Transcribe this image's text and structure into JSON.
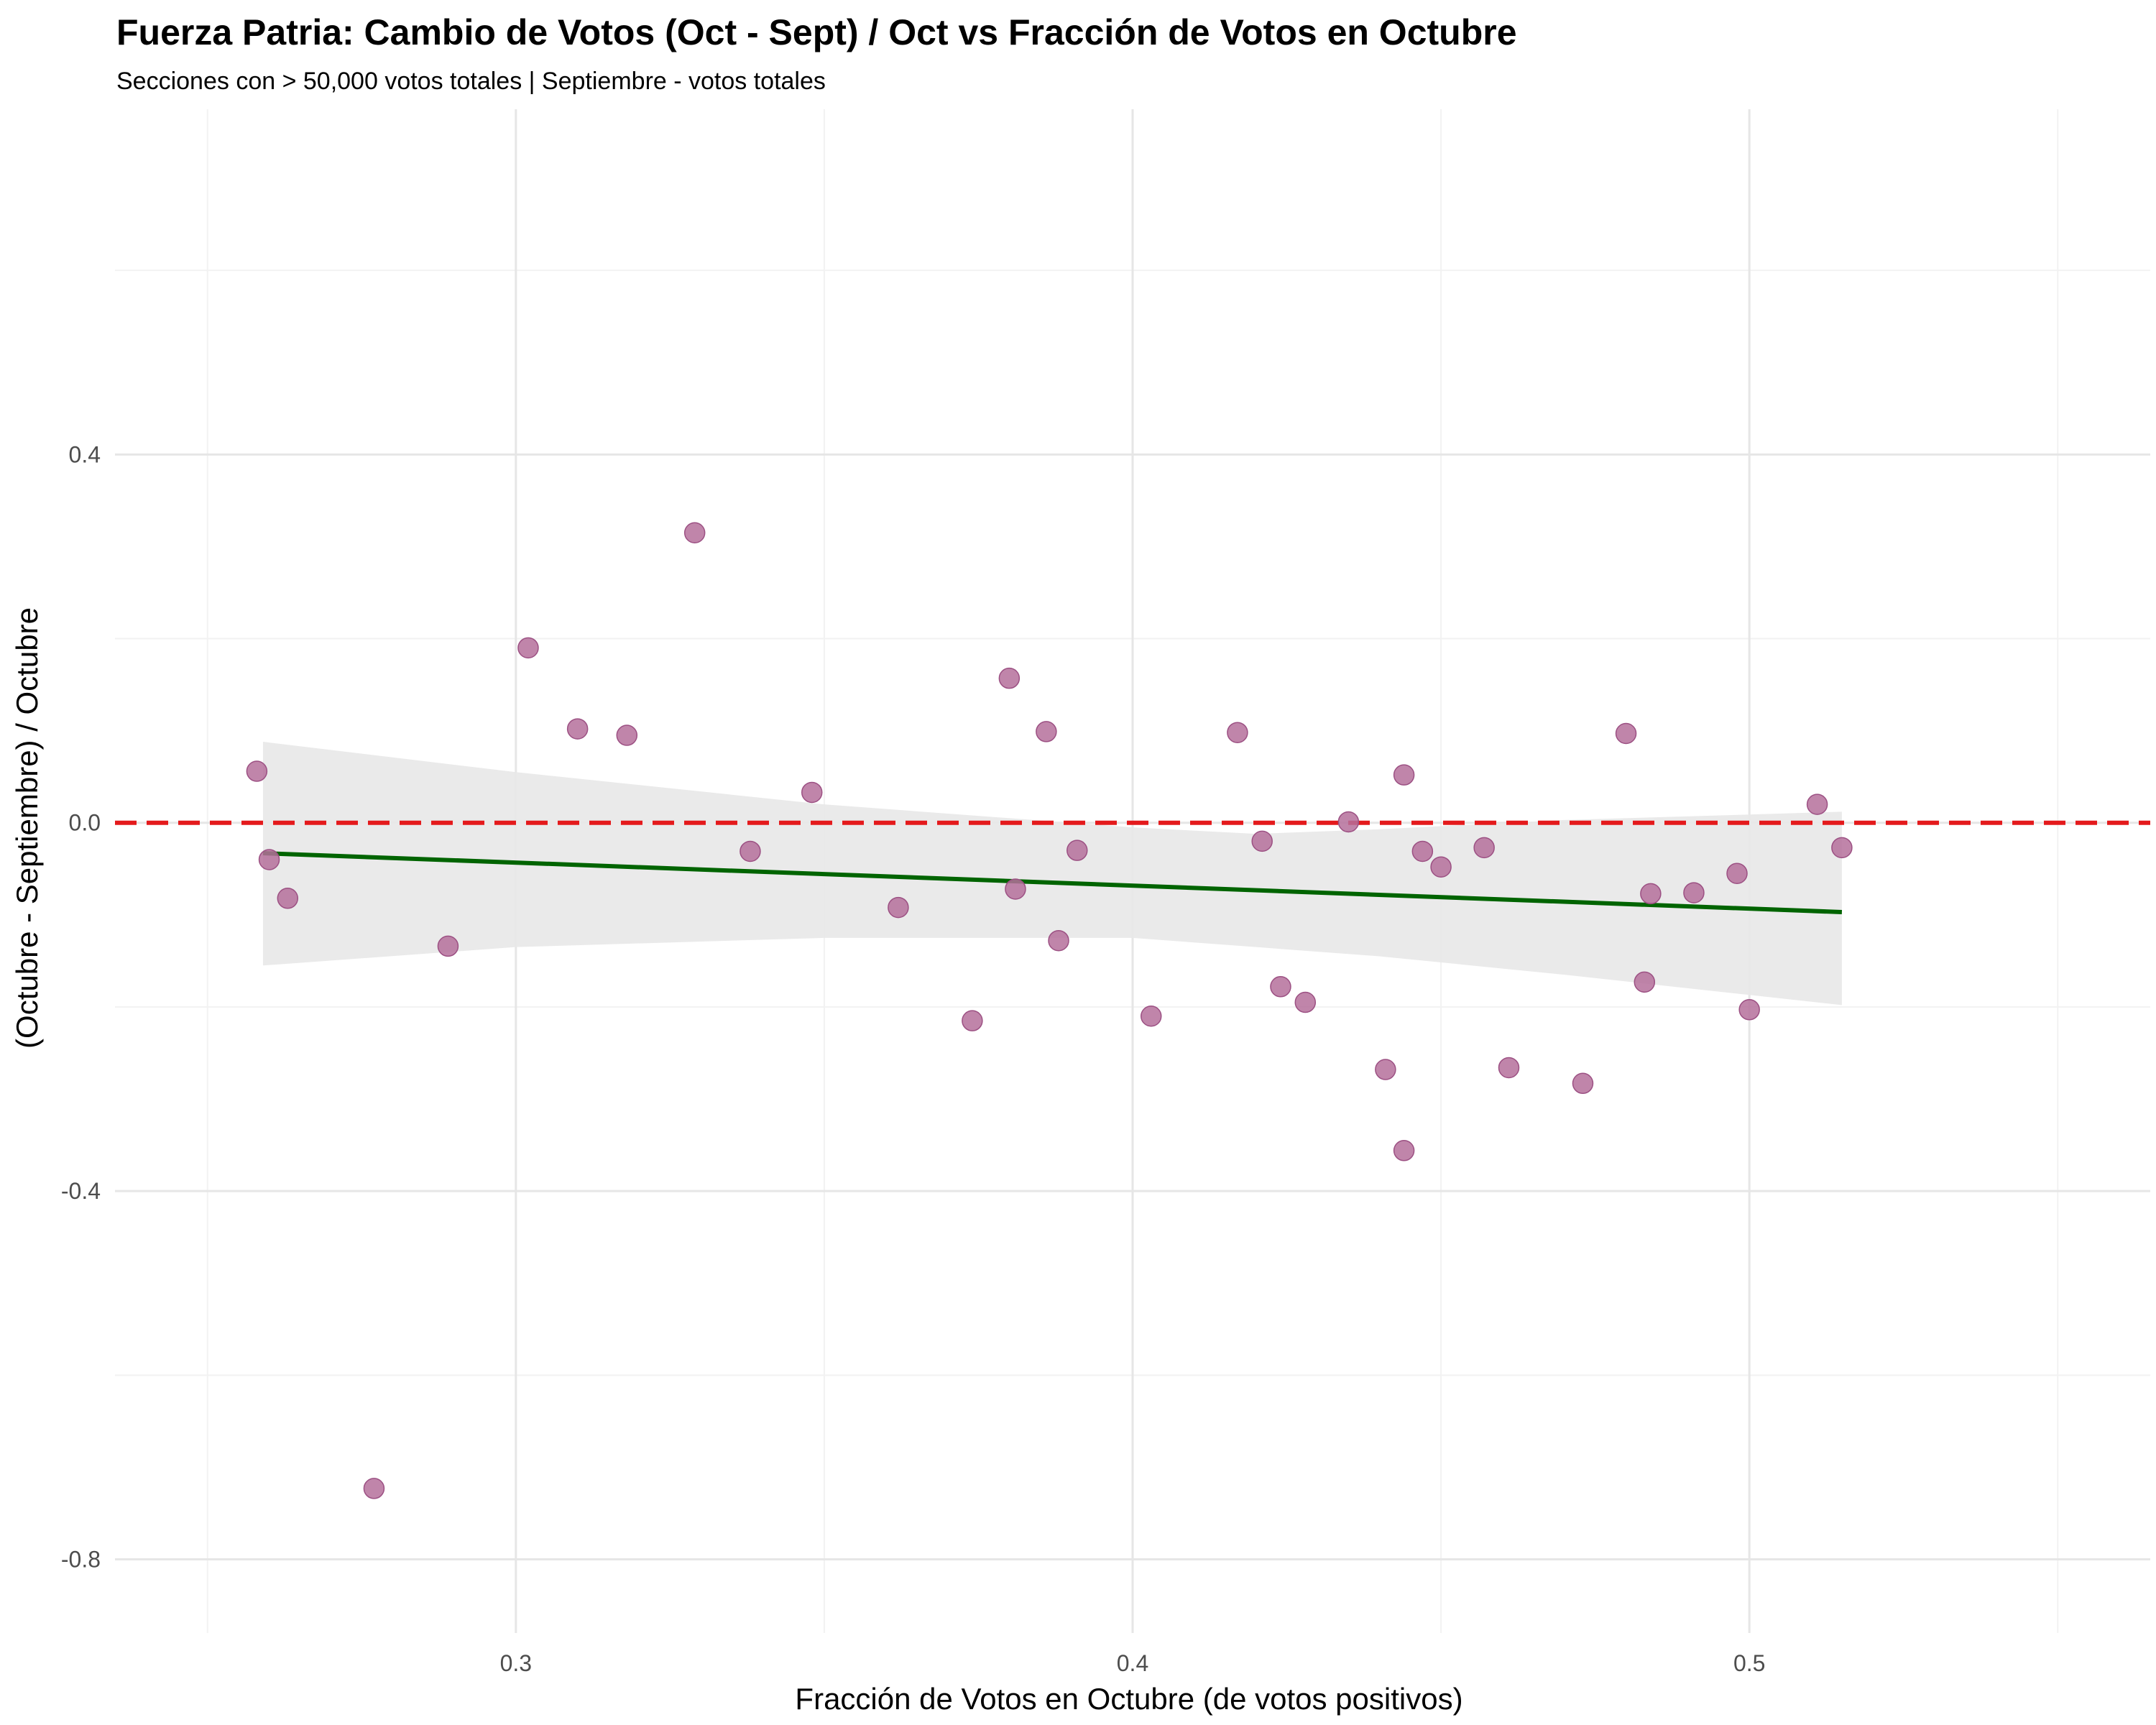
{
  "chart_data": {
    "type": "scatter",
    "title": "Fuerza Patria: Cambio de Votos (Oct - Sept) / Oct vs Fracción de Votos en Octubre",
    "subtitle": "Secciones con > 50,000 votos totales | Septiembre - votos totales",
    "xlabel": "Fracción de Votos en Octubre (de votos positivos)",
    "ylabel": "(Octubre - Septiembre) / Octubre",
    "xlim": [
      0.235,
      0.565
    ],
    "ylim": [
      -0.88,
      0.775
    ],
    "x_ticks": [
      0.3,
      0.4,
      0.5
    ],
    "x_tick_labels": [
      "0.3",
      "0.4",
      "0.5"
    ],
    "y_ticks": [
      -0.8,
      -0.4,
      0.0,
      0.4
    ],
    "y_tick_labels": [
      "-0.8",
      "-0.4",
      "0.0",
      "0.4"
    ],
    "x_minor": [
      0.25,
      0.35,
      0.45,
      0.55
    ],
    "y_minor": [
      -0.6,
      -0.2,
      0.2,
      0.6
    ],
    "grid": true,
    "point_color": "#b5709b",
    "points": [
      {
        "x": 0.258,
        "y": 0.056
      },
      {
        "x": 0.26,
        "y": -0.04
      },
      {
        "x": 0.263,
        "y": -0.082
      },
      {
        "x": 0.277,
        "y": -0.723
      },
      {
        "x": 0.289,
        "y": -0.134
      },
      {
        "x": 0.302,
        "y": 0.19
      },
      {
        "x": 0.31,
        "y": 0.102
      },
      {
        "x": 0.318,
        "y": 0.095
      },
      {
        "x": 0.329,
        "y": 0.315
      },
      {
        "x": 0.338,
        "y": -0.031
      },
      {
        "x": 0.348,
        "y": 0.033
      },
      {
        "x": 0.362,
        "y": -0.092
      },
      {
        "x": 0.374,
        "y": -0.215
      },
      {
        "x": 0.38,
        "y": 0.157
      },
      {
        "x": 0.381,
        "y": -0.072
      },
      {
        "x": 0.386,
        "y": 0.099
      },
      {
        "x": 0.388,
        "y": -0.128
      },
      {
        "x": 0.391,
        "y": -0.03
      },
      {
        "x": 0.403,
        "y": -0.21
      },
      {
        "x": 0.417,
        "y": 0.098
      },
      {
        "x": 0.421,
        "y": -0.02
      },
      {
        "x": 0.424,
        "y": -0.178
      },
      {
        "x": 0.428,
        "y": -0.195
      },
      {
        "x": 0.435,
        "y": 0.001
      },
      {
        "x": 0.441,
        "y": -0.268
      },
      {
        "x": 0.444,
        "y": 0.052
      },
      {
        "x": 0.444,
        "y": -0.356
      },
      {
        "x": 0.447,
        "y": -0.031
      },
      {
        "x": 0.45,
        "y": -0.048
      },
      {
        "x": 0.457,
        "y": -0.027
      },
      {
        "x": 0.461,
        "y": -0.266
      },
      {
        "x": 0.473,
        "y": -0.283
      },
      {
        "x": 0.48,
        "y": 0.097
      },
      {
        "x": 0.483,
        "y": -0.173
      },
      {
        "x": 0.484,
        "y": -0.077
      },
      {
        "x": 0.491,
        "y": -0.076
      },
      {
        "x": 0.498,
        "y": -0.055
      },
      {
        "x": 0.5,
        "y": -0.203
      },
      {
        "x": 0.511,
        "y": 0.02
      },
      {
        "x": 0.515,
        "y": -0.027
      }
    ],
    "fit_line": {
      "color": "#006400",
      "x": [
        0.259,
        0.515
      ],
      "y": [
        -0.033,
        -0.097
      ]
    },
    "confidence_band": {
      "color": "#e8e8e8",
      "x": [
        0.259,
        0.3,
        0.35,
        0.4,
        0.42,
        0.44,
        0.47,
        0.5,
        0.515
      ],
      "upper": [
        0.088,
        0.055,
        0.02,
        -0.005,
        -0.012,
        -0.007,
        0.003,
        0.009,
        0.012
      ],
      "lower": [
        -0.155,
        -0.135,
        -0.125,
        -0.125,
        -0.135,
        -0.145,
        -0.165,
        -0.187,
        -0.198
      ]
    },
    "reference_line": {
      "y": 0.0,
      "color": "#e41a1c",
      "style": "dashed"
    }
  }
}
